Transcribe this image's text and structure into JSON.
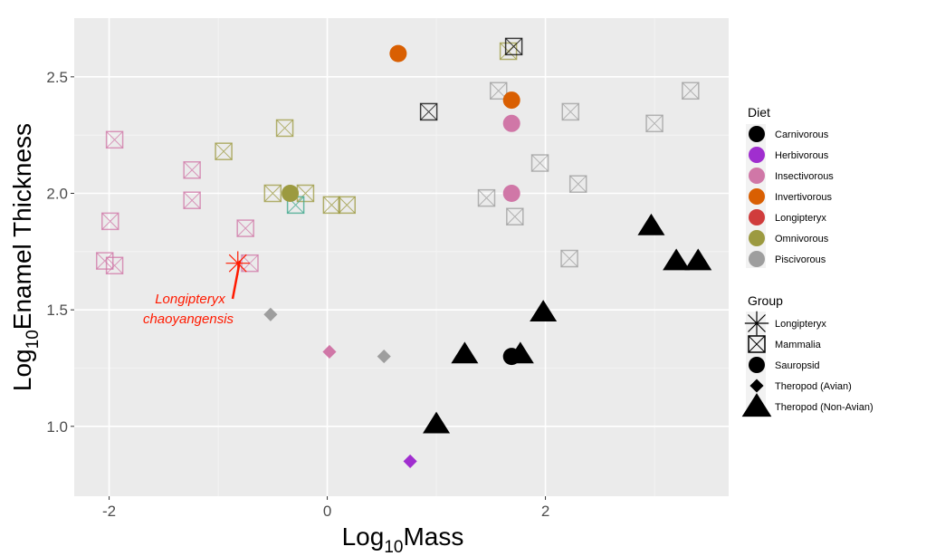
{
  "chart_data": {
    "type": "scatter",
    "xlabel_parts": [
      "Log",
      "10",
      "Mass"
    ],
    "ylabel_parts": [
      "Log",
      "10",
      "Enamel Thickness"
    ],
    "xlim": [
      -2.32,
      3.68
    ],
    "ylim": [
      0.7,
      2.752
    ],
    "x_ticks": [
      -2,
      0,
      2
    ],
    "x_tick_labels": [
      "-2",
      "0",
      "2"
    ],
    "x_minor": [
      -1,
      1,
      3
    ],
    "y_ticks": [
      1.0,
      1.5,
      2.0,
      2.5
    ],
    "y_tick_labels": [
      "1.0",
      "1.5",
      "2.0",
      "2.5"
    ],
    "y_minor": [
      1.25,
      1.75,
      2.25
    ],
    "grid": true,
    "legend_placement": "right",
    "diet_legend": {
      "title": "Diet",
      "items": [
        {
          "label": "Carnivorous",
          "color": "#000000"
        },
        {
          "label": "Herbivorous",
          "color": "#a02ecf"
        },
        {
          "label": "Insectivorous",
          "color": "#d077a7"
        },
        {
          "label": "Invertivorous",
          "color": "#d95f02"
        },
        {
          "label": "Longipteryx",
          "color": "#d03c3c"
        },
        {
          "label": "Omnivorous",
          "color": "#9c9a40"
        },
        {
          "label": "Piscivorous",
          "color": "#9e9e9e"
        }
      ]
    },
    "group_legend": {
      "title": "Group",
      "items": [
        {
          "label": "Longipteryx",
          "shape": "asterisk"
        },
        {
          "label": "Mammalia",
          "shape": "boxcross"
        },
        {
          "label": "Sauropsid",
          "shape": "circle"
        },
        {
          "label": "Theropod (Avian)",
          "shape": "diamond"
        },
        {
          "label": "Theropod (Non-Avian)",
          "shape": "triangle"
        }
      ]
    },
    "annotation": {
      "lines": [
        "Longipteryx",
        "chaoyangensis"
      ],
      "color": "#ff1a00",
      "target": [
        -0.82,
        1.7
      ]
    },
    "points": [
      {
        "x": -1.95,
        "y": 2.23,
        "group": "Mammalia",
        "diet": "Insectivorous"
      },
      {
        "x": -1.99,
        "y": 1.88,
        "group": "Mammalia",
        "diet": "Insectivorous"
      },
      {
        "x": -2.04,
        "y": 1.71,
        "group": "Mammalia",
        "diet": "Insectivorous"
      },
      {
        "x": -1.95,
        "y": 1.69,
        "group": "Mammalia",
        "diet": "Insectivorous"
      },
      {
        "x": -1.24,
        "y": 2.1,
        "group": "Mammalia",
        "diet": "Insectivorous"
      },
      {
        "x": -1.24,
        "y": 1.97,
        "group": "Mammalia",
        "diet": "Insectivorous"
      },
      {
        "x": -0.75,
        "y": 1.85,
        "group": "Mammalia",
        "diet": "Insectivorous"
      },
      {
        "x": -0.71,
        "y": 1.7,
        "group": "Mammalia",
        "diet": "Insectivorous"
      },
      {
        "x": -0.95,
        "y": 2.18,
        "group": "Mammalia",
        "diet": "Omnivorous"
      },
      {
        "x": -0.39,
        "y": 2.28,
        "group": "Mammalia",
        "diet": "Omnivorous"
      },
      {
        "x": -0.5,
        "y": 2.0,
        "group": "Mammalia",
        "diet": "Omnivorous"
      },
      {
        "x": -0.2,
        "y": 2.0,
        "group": "Mammalia",
        "diet": "Omnivorous"
      },
      {
        "x": 0.04,
        "y": 1.95,
        "group": "Mammalia",
        "diet": "Omnivorous"
      },
      {
        "x": 0.18,
        "y": 1.95,
        "group": "Mammalia",
        "diet": "Omnivorous"
      },
      {
        "x": 1.66,
        "y": 2.61,
        "group": "Mammalia",
        "diet": "Omnivorous"
      },
      {
        "x": -0.29,
        "y": 1.95,
        "group": "Mammalia",
        "diet": "Other",
        "color": "#3aa58a"
      },
      {
        "x": 1.71,
        "y": 2.63,
        "group": "Mammalia",
        "diet": "Carnivorous"
      },
      {
        "x": 0.93,
        "y": 2.35,
        "group": "Mammalia",
        "diet": "Carnivorous"
      },
      {
        "x": 1.57,
        "y": 2.44,
        "group": "Mammalia",
        "diet": "Piscivorous"
      },
      {
        "x": 2.23,
        "y": 2.35,
        "group": "Mammalia",
        "diet": "Piscivorous"
      },
      {
        "x": 3.0,
        "y": 2.3,
        "group": "Mammalia",
        "diet": "Piscivorous"
      },
      {
        "x": 3.33,
        "y": 2.44,
        "group": "Mammalia",
        "diet": "Piscivorous"
      },
      {
        "x": 1.95,
        "y": 2.13,
        "group": "Mammalia",
        "diet": "Piscivorous"
      },
      {
        "x": 1.46,
        "y": 1.98,
        "group": "Mammalia",
        "diet": "Piscivorous"
      },
      {
        "x": 2.3,
        "y": 2.04,
        "group": "Mammalia",
        "diet": "Piscivorous"
      },
      {
        "x": 1.72,
        "y": 1.9,
        "group": "Mammalia",
        "diet": "Piscivorous"
      },
      {
        "x": 2.22,
        "y": 1.72,
        "group": "Mammalia",
        "diet": "Piscivorous"
      },
      {
        "x": 0.65,
        "y": 2.6,
        "group": "Sauropsid",
        "diet": "Invertivorous"
      },
      {
        "x": 1.69,
        "y": 2.4,
        "group": "Sauropsid",
        "diet": "Invertivorous"
      },
      {
        "x": 1.69,
        "y": 2.3,
        "group": "Sauropsid",
        "diet": "Insectivorous"
      },
      {
        "x": 1.69,
        "y": 2.0,
        "group": "Sauropsid",
        "diet": "Insectivorous"
      },
      {
        "x": -0.34,
        "y": 2.0,
        "group": "Sauropsid",
        "diet": "Omnivorous"
      },
      {
        "x": 1.69,
        "y": 1.3,
        "group": "Sauropsid",
        "diet": "Carnivorous"
      },
      {
        "x": -0.52,
        "y": 1.48,
        "group": "Theropod (Avian)",
        "diet": "Piscivorous"
      },
      {
        "x": 0.52,
        "y": 1.3,
        "group": "Theropod (Avian)",
        "diet": "Piscivorous"
      },
      {
        "x": 0.02,
        "y": 1.32,
        "group": "Theropod (Avian)",
        "diet": "Insectivorous"
      },
      {
        "x": 0.76,
        "y": 0.85,
        "group": "Theropod (Avian)",
        "diet": "Herbivorous"
      },
      {
        "x": 1.98,
        "y": 1.49,
        "group": "Theropod (Non-Avian)",
        "diet": "Carnivorous"
      },
      {
        "x": 1.26,
        "y": 1.31,
        "group": "Theropod (Non-Avian)",
        "diet": "Carnivorous"
      },
      {
        "x": 1.77,
        "y": 1.31,
        "group": "Theropod (Non-Avian)",
        "diet": "Carnivorous"
      },
      {
        "x": 1.0,
        "y": 1.01,
        "group": "Theropod (Non-Avian)",
        "diet": "Carnivorous"
      },
      {
        "x": 2.97,
        "y": 1.86,
        "group": "Theropod (Non-Avian)",
        "diet": "Carnivorous"
      },
      {
        "x": 3.2,
        "y": 1.71,
        "group": "Theropod (Non-Avian)",
        "diet": "Carnivorous"
      },
      {
        "x": 3.4,
        "y": 1.71,
        "group": "Theropod (Non-Avian)",
        "diet": "Carnivorous"
      },
      {
        "x": -0.82,
        "y": 1.7,
        "group": "Longipteryx",
        "diet": "Longipteryx",
        "color": "#ff1a00"
      }
    ]
  }
}
